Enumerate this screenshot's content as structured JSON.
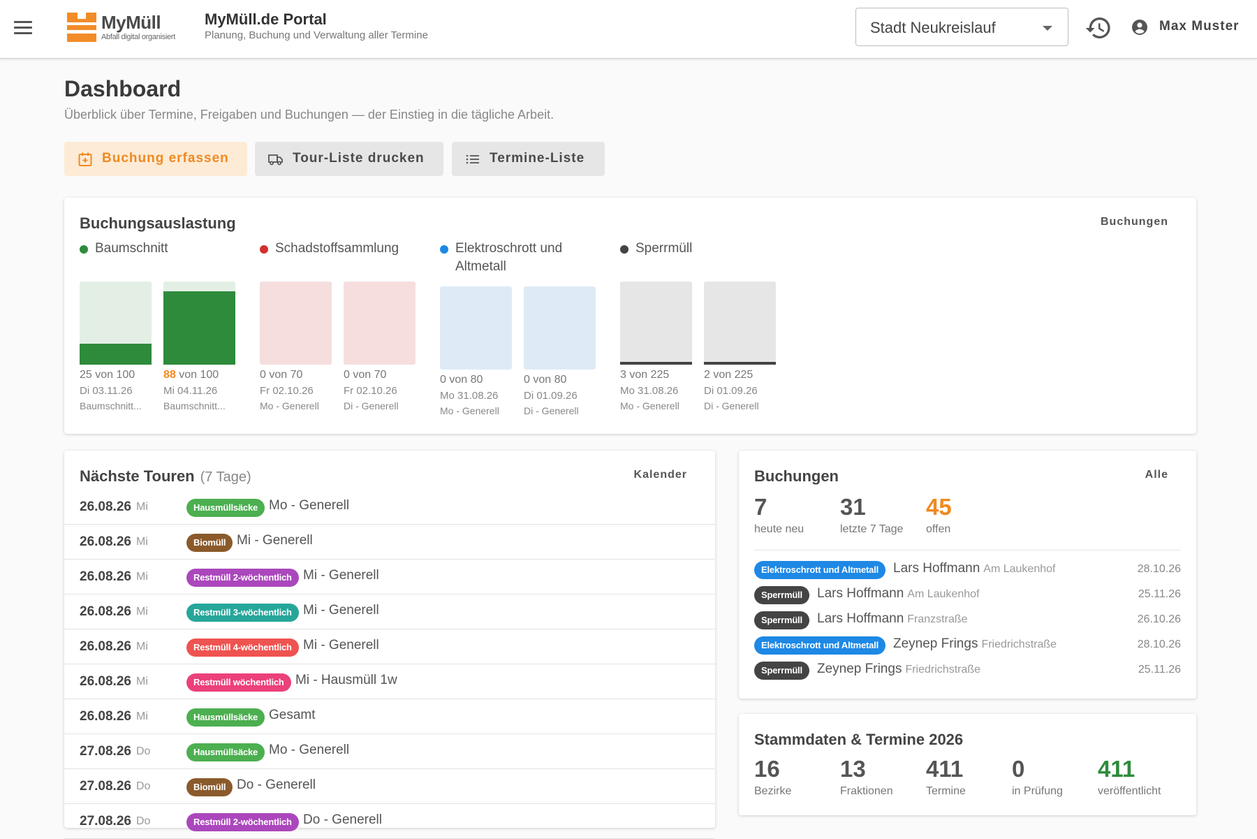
{
  "header": {
    "logo_name": "MyMüll",
    "logo_tagline": "Abfall digital organisiert",
    "portal_title": "MyMüll.de Portal",
    "portal_subtitle": "Planung, Buchung und Verwaltung aller Termine",
    "city": "Stadt Neukreislauf",
    "user_name": "Max Muster"
  },
  "page": {
    "title": "Dashboard",
    "subtitle": "Überblick über Termine, Freigaben und Buchungen — der Einstieg in die tägliche Arbeit."
  },
  "actions": {
    "book_label": "Buchung erfassen",
    "tour_label": "Tour-Liste drucken",
    "list_label": "Termine-Liste"
  },
  "capacity": {
    "title": "Buchungsauslastung",
    "link": "Buchungen",
    "groups": [
      {
        "name": "Baumschnitt",
        "color": "#2e8b3c",
        "track": "#e3efe4",
        "slots": [
          {
            "booked": "25",
            "of": "von 100",
            "capacity": 100,
            "count": 25,
            "date": "Di 03.11.26",
            "tour": "Baumschnitt..."
          },
          {
            "booked": "88",
            "of": "von 100",
            "capacity": 100,
            "count": 88,
            "date": "Mi 04.11.26",
            "tour": "Baumschnitt...",
            "warn": true
          }
        ]
      },
      {
        "name": "Schadstoffsammlung",
        "color": "#d32f2f",
        "track": "#f6dede",
        "slots": [
          {
            "booked": "0",
            "of": "von 70",
            "capacity": 70,
            "count": 0,
            "date": "Fr 02.10.26",
            "tour": "Mo - Generell"
          },
          {
            "booked": "0",
            "of": "von 70",
            "capacity": 70,
            "count": 0,
            "date": "Fr 02.10.26",
            "tour": "Di - Generell"
          }
        ]
      },
      {
        "name": "Elektroschrott und Altmetall",
        "color": "#1e88e5",
        "track": "#dfeaf7",
        "slots": [
          {
            "booked": "0",
            "of": "von 80",
            "capacity": 80,
            "count": 0,
            "date": "Mo 31.08.26",
            "tour": "Mo - Generell"
          },
          {
            "booked": "0",
            "of": "von 80",
            "capacity": 80,
            "count": 0,
            "date": "Di 01.09.26",
            "tour": "Di - Generell"
          }
        ]
      },
      {
        "name": "Sperrmüll",
        "color": "#444444",
        "track": "#e6e6e6",
        "slots": [
          {
            "booked": "3",
            "of": "von 225",
            "capacity": 225,
            "count": 3,
            "date": "Mo 31.08.26",
            "tour": "Mo - Generell"
          },
          {
            "booked": "2",
            "of": "von 225",
            "capacity": 225,
            "count": 2,
            "date": "Di 01.09.26",
            "tour": "Di - Generell"
          }
        ]
      }
    ]
  },
  "tours": {
    "title": "Nächste Touren",
    "range": "(7 Tage)",
    "link": "Kalender",
    "rows": [
      {
        "date": "26.08.26",
        "dow": "Mi",
        "chip": "Hausmüllsäcke",
        "chip_color": "#4caf50",
        "desc": "Mo - Generell"
      },
      {
        "date": "26.08.26",
        "dow": "Mi",
        "chip": "Biomüll",
        "chip_color": "#8b5a2b",
        "desc": "Mi - Generell"
      },
      {
        "date": "26.08.26",
        "dow": "Mi",
        "chip": "Restmüll 2-wöchentlich",
        "chip_color": "#ab47bc",
        "desc": "Mi - Generell"
      },
      {
        "date": "26.08.26",
        "dow": "Mi",
        "chip": "Restmüll 3-wöchentlich",
        "chip_color": "#26a69a",
        "desc": "Mi - Generell"
      },
      {
        "date": "26.08.26",
        "dow": "Mi",
        "chip": "Restmüll 4-wöchentlich",
        "chip_color": "#ef5350",
        "desc": "Mi - Generell"
      },
      {
        "date": "26.08.26",
        "dow": "Mi",
        "chip": "Restmüll wöchentlich",
        "chip_color": "#ec407a",
        "desc": "Mi - Hausmüll 1w"
      },
      {
        "date": "26.08.26",
        "dow": "Mi",
        "chip": "Hausmüllsäcke",
        "chip_color": "#4caf50",
        "desc": "Gesamt"
      },
      {
        "date": "27.08.26",
        "dow": "Do",
        "chip": "Hausmüllsäcke",
        "chip_color": "#4caf50",
        "desc": "Mo - Generell"
      },
      {
        "date": "27.08.26",
        "dow": "Do",
        "chip": "Biomüll",
        "chip_color": "#8b5a2b",
        "desc": "Do - Generell"
      },
      {
        "date": "27.08.26",
        "dow": "Do",
        "chip": "Restmüll 2-wöchentlich",
        "chip_color": "#ab47bc",
        "desc": "Do - Generell"
      }
    ]
  },
  "bookings": {
    "title": "Buchungen",
    "link": "Alle",
    "stats": [
      {
        "value": "7",
        "label": "heute neu",
        "color": "#555555"
      },
      {
        "value": "31",
        "label": "letzte 7 Tage",
        "color": "#555555"
      },
      {
        "value": "45",
        "label": "offen",
        "color": "#ef8a22"
      }
    ],
    "rows": [
      {
        "chip": "Elektroschrott und Altmetall",
        "chip_color": "#1e88e5",
        "name": "Lars Hoffmann",
        "street": "Am Laukenhof",
        "date": "28.10.26"
      },
      {
        "chip": "Sperrmüll",
        "chip_color": "#444444",
        "name": "Lars Hoffmann",
        "street": "Am Laukenhof",
        "date": "25.11.26"
      },
      {
        "chip": "Sperrmüll",
        "chip_color": "#444444",
        "name": "Lars Hoffmann",
        "street": "Franzstraße",
        "date": "26.10.26"
      },
      {
        "chip": "Elektroschrott und Altmetall",
        "chip_color": "#1e88e5",
        "name": "Zeynep Frings",
        "street": "Friedrichstraße",
        "date": "28.10.26"
      },
      {
        "chip": "Sperrmüll",
        "chip_color": "#444444",
        "name": "Zeynep Frings",
        "street": "Friedrichstraße",
        "date": "25.11.26"
      }
    ]
  },
  "master": {
    "title": "Stammdaten & Termine 2026",
    "stats": [
      {
        "value": "16",
        "label": "Bezirke",
        "color": "#555555"
      },
      {
        "value": "13",
        "label": "Fraktionen",
        "color": "#555555"
      },
      {
        "value": "411",
        "label": "Termine",
        "color": "#555555"
      },
      {
        "value": "0",
        "label": "in Prüfung",
        "color": "#555555"
      },
      {
        "value": "411",
        "label": "veröffentlicht",
        "color": "#2e8b3c"
      }
    ]
  },
  "icons": {
    "menu": "menu-icon",
    "history": "history-icon",
    "user": "account-circle-icon",
    "book": "calendar-plus-icon",
    "tour": "truck-icon",
    "list": "list-icon"
  }
}
